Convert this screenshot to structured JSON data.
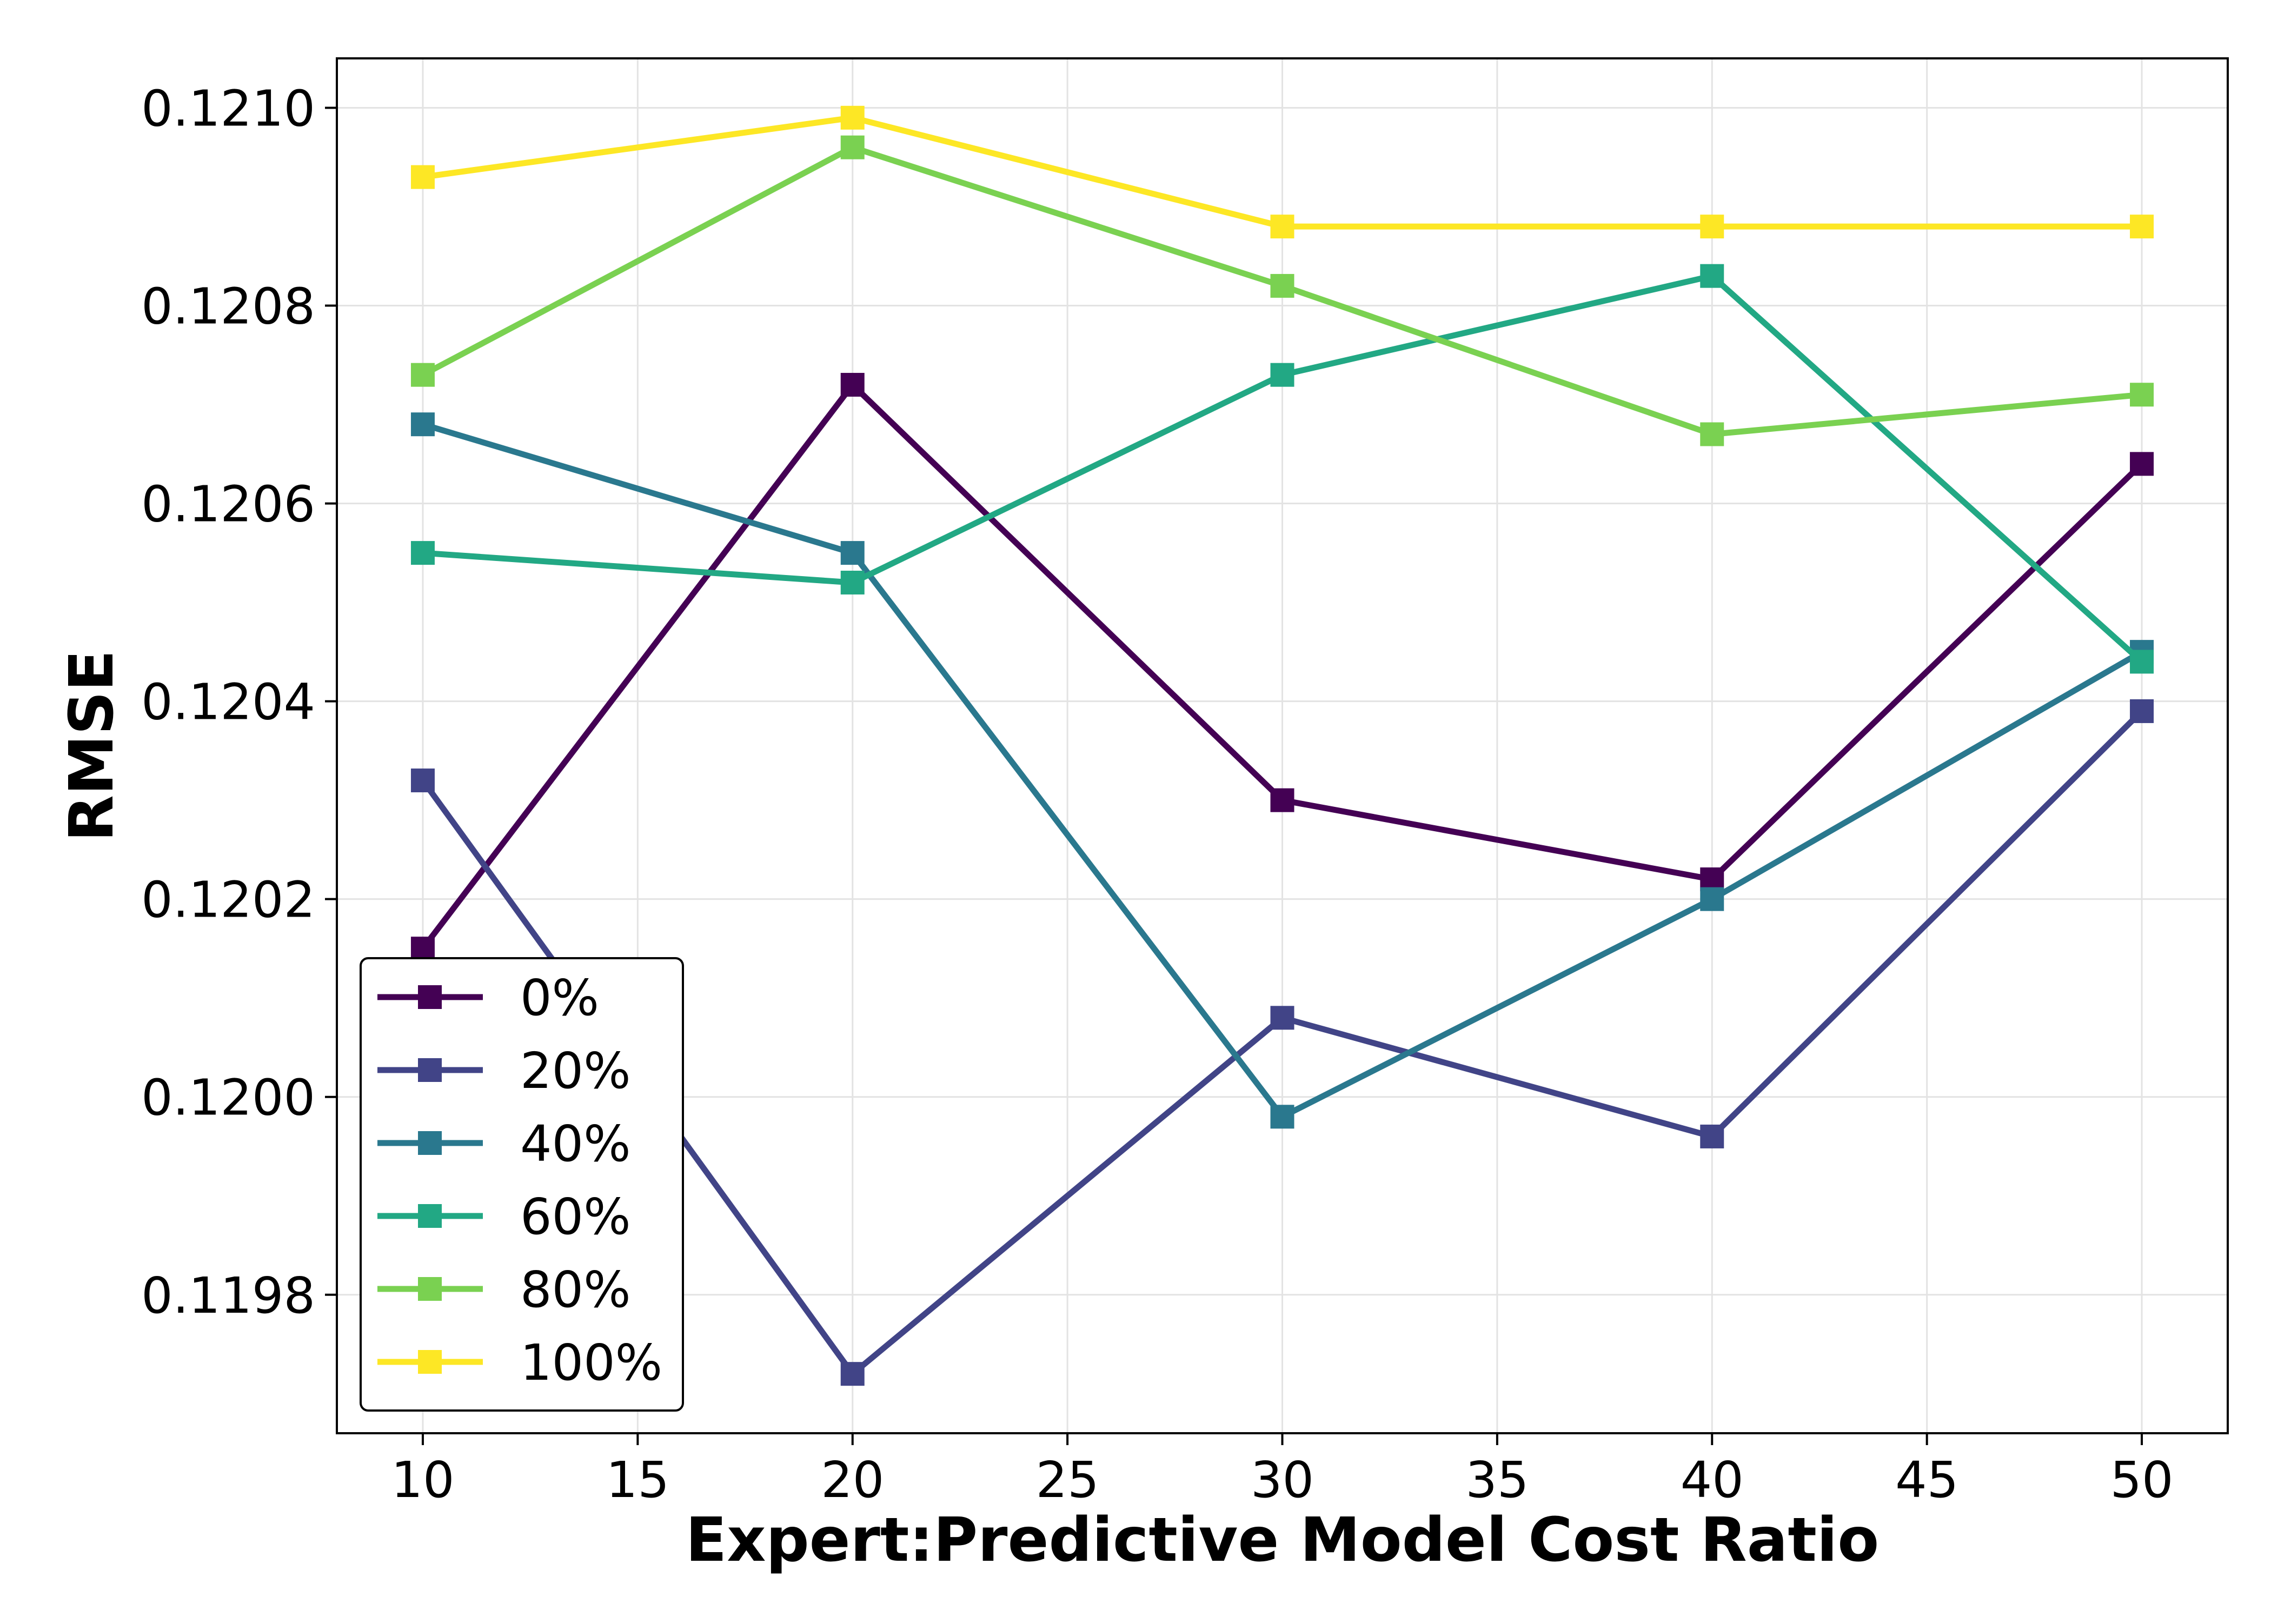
{
  "chart_data": {
    "type": "line",
    "xlabel": "Expert:Predictive Model Cost Ratio",
    "ylabel": "RMSE",
    "x": [
      10,
      20,
      30,
      40,
      50
    ],
    "xlim": [
      8,
      52
    ],
    "ylim": [
      0.11966,
      0.12105
    ],
    "xticks": [
      10,
      15,
      20,
      25,
      30,
      35,
      40,
      45,
      50
    ],
    "xtick_labels": [
      "10",
      "15",
      "20",
      "25",
      "30",
      "35",
      "40",
      "45",
      "50"
    ],
    "yticks": [
      0.1198,
      0.12,
      0.1202,
      0.1204,
      0.1206,
      0.1208,
      0.121
    ],
    "ytick_labels": [
      "0.1198",
      "0.1200",
      "0.1202",
      "0.1204",
      "0.1206",
      "0.1208",
      "0.1210"
    ],
    "grid": true,
    "legend_position": "bottom-left",
    "marker": "square",
    "series": [
      {
        "name": "0%",
        "color": "#440154",
        "values": [
          0.12015,
          0.12072,
          0.1203,
          0.12022,
          0.12064
        ]
      },
      {
        "name": "20%",
        "color": "#414487",
        "values": [
          0.12032,
          0.11972,
          0.12008,
          0.11996,
          0.12039
        ]
      },
      {
        "name": "40%",
        "color": "#2a788e",
        "values": [
          0.12068,
          0.12055,
          0.11998,
          0.1202,
          0.12045
        ]
      },
      {
        "name": "60%",
        "color": "#22a884",
        "values": [
          0.12055,
          0.12052,
          0.12073,
          0.12083,
          0.12044
        ]
      },
      {
        "name": "80%",
        "color": "#7ad151",
        "values": [
          0.12073,
          0.12096,
          0.12082,
          0.12067,
          0.12071
        ]
      },
      {
        "name": "100%",
        "color": "#fde725",
        "values": [
          0.12093,
          0.12099,
          0.12088,
          0.12088,
          0.12088
        ]
      }
    ]
  }
}
